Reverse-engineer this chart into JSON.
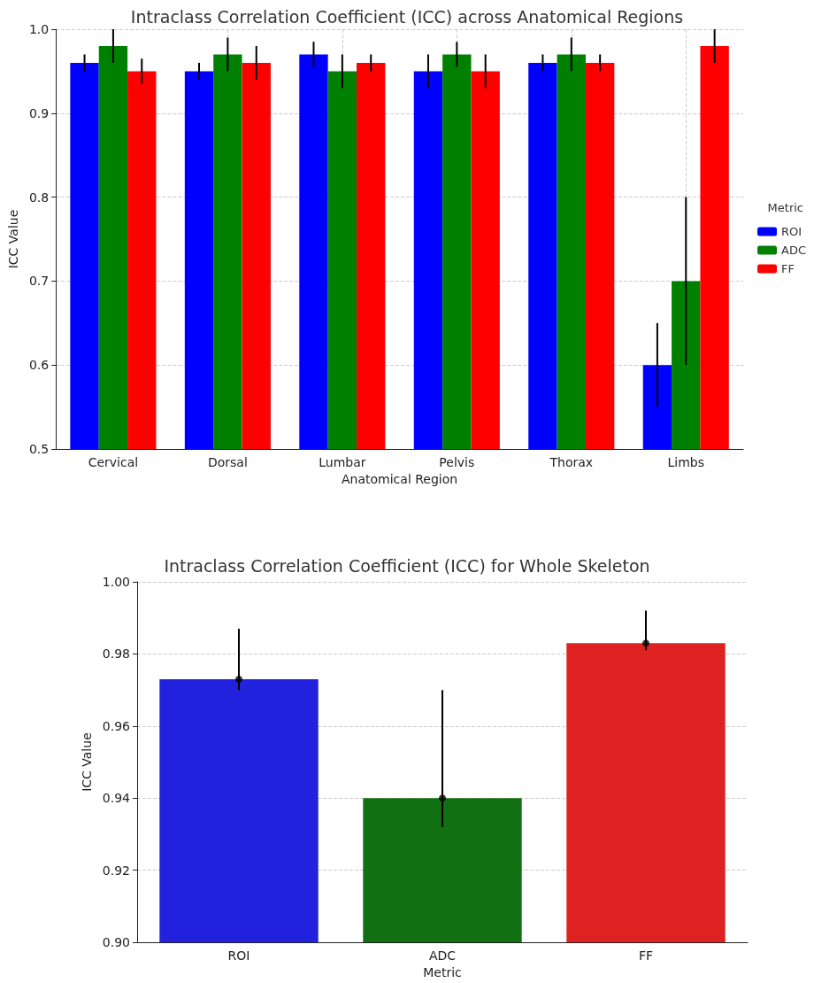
{
  "chart_data": [
    {
      "type": "bar",
      "title": "Intraclass Correlation Coefficient (ICC) across Anatomical Regions",
      "xlabel": "Anatomical Region",
      "ylabel": "ICC Value",
      "legend_title": "Metric",
      "categories": [
        "Cervical",
        "Dorsal",
        "Lumbar",
        "Pelvis",
        "Thorax",
        "Limbs"
      ],
      "series": [
        {
          "name": "ROI",
          "color": "#0000ff",
          "values": [
            0.96,
            0.95,
            0.97,
            0.95,
            0.96,
            0.6
          ],
          "errors": [
            [
              0.95,
              0.97
            ],
            [
              0.94,
              0.96
            ],
            [
              0.955,
              0.985
            ],
            [
              0.93,
              0.97
            ],
            [
              0.95,
              0.97
            ],
            [
              0.55,
              0.65
            ]
          ]
        },
        {
          "name": "ADC",
          "color": "#008000",
          "values": [
            0.98,
            0.97,
            0.95,
            0.97,
            0.97,
            0.7
          ],
          "errors": [
            [
              0.96,
              1.0
            ],
            [
              0.95,
              0.99
            ],
            [
              0.93,
              0.97
            ],
            [
              0.955,
              0.985
            ],
            [
              0.95,
              0.99
            ],
            [
              0.6,
              0.8
            ]
          ]
        },
        {
          "name": "FF",
          "color": "#ff0000",
          "values": [
            0.95,
            0.96,
            0.96,
            0.95,
            0.96,
            0.98
          ],
          "errors": [
            [
              0.935,
              0.965
            ],
            [
              0.94,
              0.98
            ],
            [
              0.95,
              0.97
            ],
            [
              0.93,
              0.97
            ],
            [
              0.95,
              0.97
            ],
            [
              0.96,
              1.0
            ]
          ]
        }
      ],
      "ylim": [
        0.5,
        1.0
      ],
      "yticks": [
        0.5,
        0.6,
        0.7,
        0.8,
        0.9,
        {
          "value": 1.0,
          "label": "1.0"
        }
      ],
      "grid": true,
      "legend": "right"
    },
    {
      "type": "bar",
      "title": "Intraclass Correlation Coefficient (ICC) for Whole Skeleton",
      "xlabel": "Metric",
      "ylabel": "ICC Value",
      "categories": [
        "ROI",
        "ADC",
        "FF"
      ],
      "series": [
        {
          "values": [
            0.973,
            0.94,
            0.983
          ],
          "colors": [
            "#2121de",
            "#117011",
            "#de2121"
          ],
          "errors": [
            [
              0.97,
              0.987
            ],
            [
              0.932,
              0.97
            ],
            [
              0.981,
              0.992
            ]
          ]
        },
        {
          "type": "scatter",
          "x": [
            "ROI",
            "ADC",
            "FF"
          ],
          "values": [
            0.973,
            0.94,
            0.983
          ],
          "color": "#000000"
        }
      ],
      "marker": "circle",
      "ylim": [
        0.9,
        1.0
      ],
      "yticks": [
        {
          "value": 0.9,
          "label": "0.90"
        },
        {
          "value": 0.92,
          "label": "0.92"
        },
        {
          "value": 0.94,
          "label": "0.94"
        },
        {
          "value": 0.96,
          "label": "0.96"
        },
        {
          "value": 0.98,
          "label": "0.98"
        },
        {
          "value": 1.0,
          "label": "1.00"
        }
      ],
      "grid": "y"
    }
  ]
}
